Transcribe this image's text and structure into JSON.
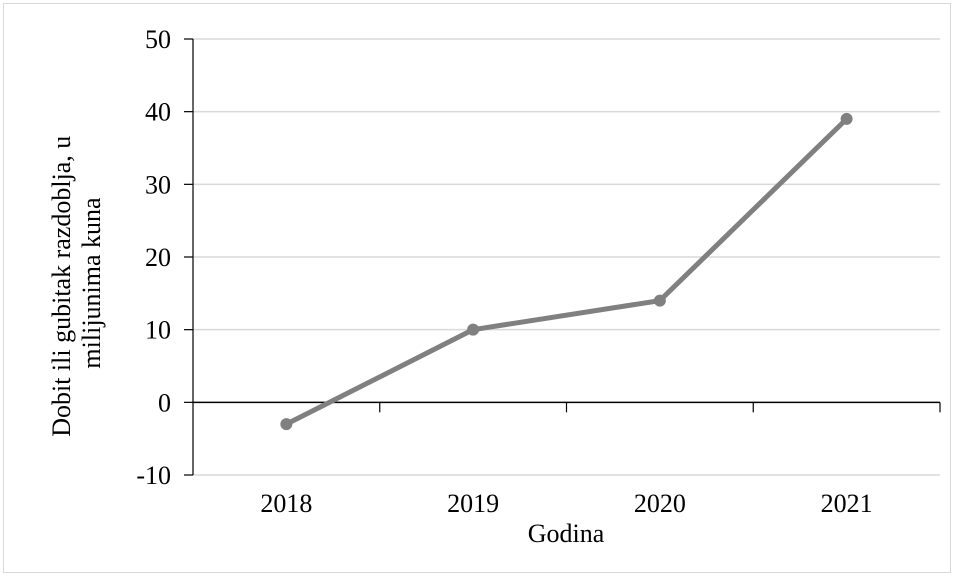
{
  "chart_data": {
    "type": "line",
    "title": "",
    "categories": [
      "2018",
      "2019",
      "2020",
      "2021"
    ],
    "series": [
      {
        "values": [
          -3,
          10,
          14,
          39
        ]
      }
    ],
    "xlabel": "Godina",
    "ylabel_lines": [
      "Dobit ili gubitak razdoblja, u",
      "milijunima kuna"
    ],
    "ylim": [
      -10,
      50
    ],
    "yticks": [
      "-10",
      "0",
      "10",
      "20",
      "30",
      "40",
      "50"
    ],
    "grid": true,
    "legend": "none",
    "colors": {
      "line": "#808080",
      "grid": "#d9d9d9",
      "axis": "#000000"
    }
  }
}
